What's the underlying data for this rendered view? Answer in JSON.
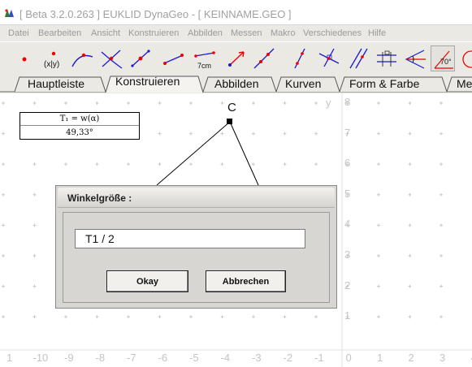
{
  "window": {
    "title": "[ Beta 3.2.0.263 ]  EUKLID DynaGeo - [ KEINNAME.GEO ]"
  },
  "menu": {
    "items": [
      "Datei",
      "Bearbeiten",
      "Ansicht",
      "Konstruieren",
      "Abbilden",
      "Messen",
      "Makro",
      "Verschiedenes",
      "Hilfe"
    ]
  },
  "toolbar": {
    "tools": [
      {
        "icon": "point-icon"
      },
      {
        "icon": "coordinate-point-icon",
        "label": "(x|y)"
      },
      {
        "icon": "point-on-curve-icon"
      },
      {
        "icon": "intersection-point-icon"
      },
      {
        "icon": "midpoint-icon"
      },
      {
        "icon": "segment-icon"
      },
      {
        "icon": "segment-fixed-length-icon",
        "label": "7cm"
      },
      {
        "icon": "ray-icon"
      },
      {
        "icon": "line-icon"
      },
      {
        "icon": "perpendicular-bisector-icon"
      },
      {
        "icon": "perpendicular-icon"
      },
      {
        "icon": "parallel-icon"
      },
      {
        "icon": "parallel-distance-icon"
      },
      {
        "icon": "angle-bisector-icon"
      },
      {
        "icon": "fixed-angle-icon",
        "label": "70°",
        "active": true
      },
      {
        "icon": "circle-icon"
      }
    ]
  },
  "tabs": [
    {
      "label": "Hauptleiste"
    },
    {
      "label": "Konstruieren",
      "active": true
    },
    {
      "label": "Abbilden"
    },
    {
      "label": "Kurven"
    },
    {
      "label": "Form & Farbe"
    },
    {
      "label": "Me"
    }
  ],
  "canvas": {
    "measurement": {
      "formula": "T₁ = w(α)",
      "value": "49,33°"
    },
    "point_label": "C",
    "y_axis_label": "y",
    "y_ticks": [
      "8",
      "7",
      "6",
      "5",
      "4",
      "3",
      "2",
      "1"
    ],
    "x_ticks": [
      "1",
      "-10",
      "-9",
      "-8",
      "-7",
      "-6",
      "-5",
      "-4",
      "-3",
      "-2",
      "-1",
      "0",
      "1",
      "2",
      "3",
      "4"
    ]
  },
  "dialog": {
    "title": "Winkelgröße :",
    "input_value": "T1 / 2",
    "ok_label": "Okay",
    "cancel_label": "Abbrechen"
  }
}
